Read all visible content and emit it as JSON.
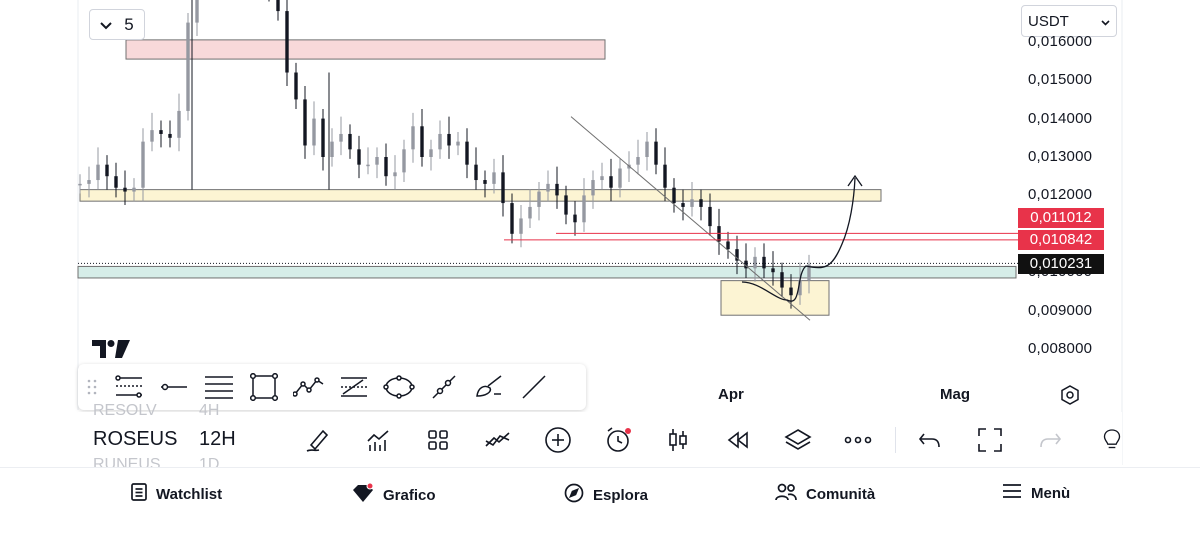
{
  "chart_data": {
    "type": "candlestick",
    "title": "",
    "xlabel": "",
    "ylabel": "",
    "ylim": [
      0.0075,
      0.0191
    ],
    "y_ticks": [
      "0,016000",
      "0,015000",
      "0,014000",
      "0,013000",
      "0,012000",
      "0,010000",
      "0,009000",
      "0,008000"
    ],
    "x_ticks": [
      "Apr",
      "Mag"
    ],
    "current_price": "0,010231",
    "tagged_levels": [
      "0,011012",
      "0,010842"
    ],
    "zones": [
      {
        "name": "supply-zone",
        "from": 0.01555,
        "to": 0.01605,
        "color": "#f8d9da"
      },
      {
        "name": "support-zone",
        "from": 0.01185,
        "to": 0.01215,
        "color": "#fcf4d3"
      },
      {
        "name": "current-zone",
        "from": 0.00985,
        "to": 0.01015,
        "color": "#d6ede8"
      },
      {
        "name": "demand-box",
        "from": 0.00888,
        "to": 0.00978,
        "color": "#fcf4d3"
      }
    ],
    "trendline": {
      "from": 0.01405,
      "to": 0.00875
    },
    "series": [
      {
        "name": "",
        "values": [
          0.0123,
          0.0124,
          0.0128,
          0.0125,
          0.0122,
          0.0121,
          0.0122,
          0.0134,
          0.0137,
          0.0136,
          0.0135,
          0.0142,
          0.0165,
          0.0178,
          0.0185,
          0.018,
          0.0176,
          0.018,
          0.0182,
          0.0178,
          0.018,
          0.0174,
          0.0168,
          0.0152,
          0.0145,
          0.0133,
          0.014,
          0.013,
          0.0134,
          0.0136,
          0.0132,
          0.0128,
          0.0128,
          0.013,
          0.0125,
          0.0126,
          0.0132,
          0.0138,
          0.013,
          0.0132,
          0.0136,
          0.0133,
          0.0134,
          0.0128,
          0.0124,
          0.0123,
          0.0126,
          0.0118,
          0.011,
          0.0114,
          0.0117,
          0.0121,
          0.0123,
          0.012,
          0.0115,
          0.0113,
          0.012,
          0.0124,
          0.0125,
          0.0122,
          0.0127,
          0.0128,
          0.013,
          0.0134,
          0.0128,
          0.0122,
          0.0118,
          0.0117,
          0.0119,
          0.0117,
          0.0112,
          0.0108,
          0.0106,
          0.0103,
          0.0101,
          0.0104,
          0.0101,
          0.01,
          0.0096,
          0.0094,
          0.0098,
          0.0102
        ]
      }
    ]
  },
  "interval_button": {
    "label": "5"
  },
  "currency_select": {
    "value": "USDT"
  },
  "bottom_toolbar": {
    "symbol": "ROSEUS",
    "interval": "12H",
    "symbol_above": "RESOLV",
    "interval_above": "4H",
    "symbol_below": "RUNEUS",
    "interval_below": "1D"
  },
  "nav": {
    "watchlist": "Watchlist",
    "chart": "Grafico",
    "explore": "Esplora",
    "community": "Comunità",
    "menu": "Menù"
  },
  "colors": {
    "candle": "#131722",
    "red_line": "#e8334a",
    "tag_red": "#e8334a"
  }
}
